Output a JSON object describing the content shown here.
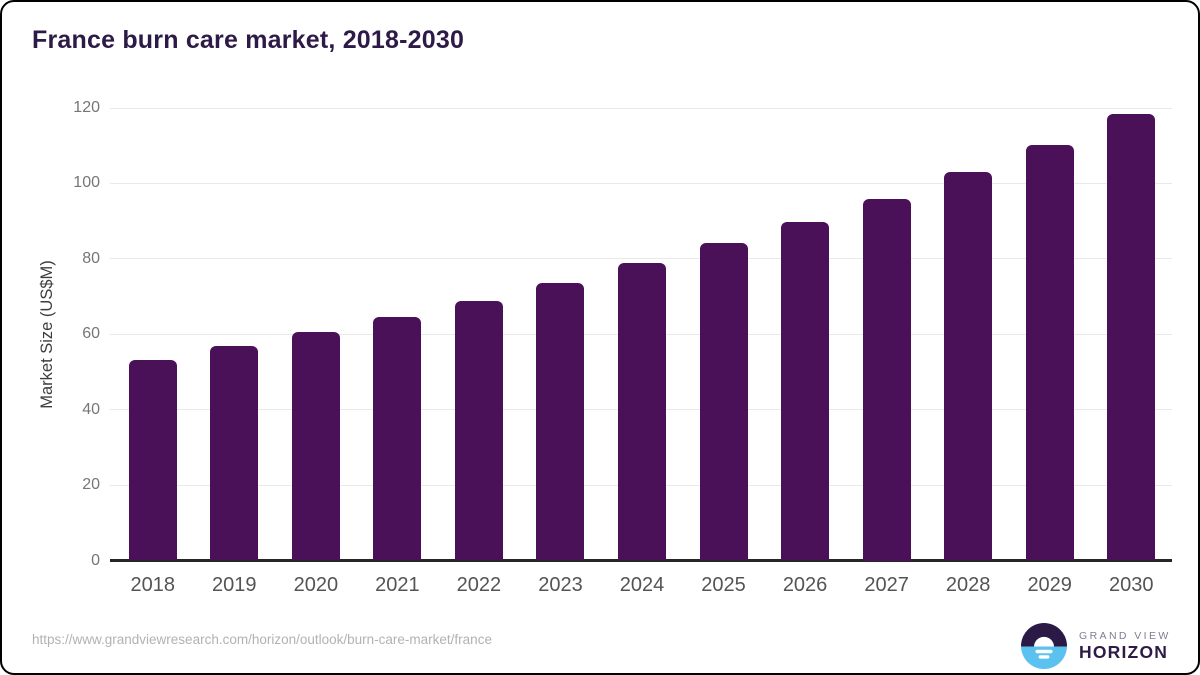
{
  "page": {
    "title": "France burn care market, 2018-2030"
  },
  "chart_data": {
    "type": "bar",
    "title": "France burn care market, 2018-2030",
    "categories": [
      "2018",
      "2019",
      "2020",
      "2021",
      "2022",
      "2023",
      "2024",
      "2025",
      "2026",
      "2027",
      "2028",
      "2029",
      "2030"
    ],
    "values": [
      53.2,
      56.8,
      60.7,
      64.6,
      68.9,
      73.7,
      78.8,
      84.2,
      89.9,
      96.0,
      103.0,
      110.2,
      118.4
    ],
    "xlabel": "",
    "ylabel": "Market Size (US$M)",
    "ylim": [
      0,
      120
    ],
    "yticks": [
      0,
      20,
      40,
      60,
      80,
      100,
      120
    ],
    "grid": "horizontal",
    "legend": "none",
    "bar_color": "#4a1158"
  },
  "footer": {
    "source_url": "https://www.grandviewresearch.com/horizon/outlook/burn-care-market/france",
    "logo": {
      "line1": "GRAND VIEW",
      "line2": "HORIZON"
    }
  },
  "colors": {
    "title_text": "#2e1a47",
    "bar": "#4a1158",
    "gridline": "#e9e9e9",
    "axis_line": "#262626",
    "y_tick_text": "#767676",
    "x_tick_text": "#545454",
    "url_text": "#b2b2b2",
    "logo_dark": "#2b1a46",
    "logo_blue": "#5bc2ef",
    "logo_line1_text": "#847b93",
    "logo_line2_text": "#2e1a47"
  }
}
